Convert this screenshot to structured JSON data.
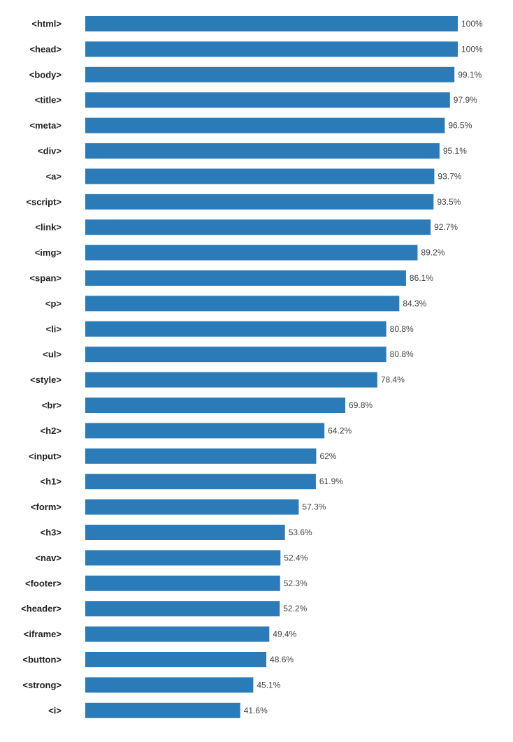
{
  "chart_data": {
    "type": "bar",
    "orientation": "horizontal",
    "title": "",
    "xlabel": "",
    "ylabel": "",
    "xlim": [
      0,
      100
    ],
    "grid": false,
    "legend": "none",
    "bar_color": "#2b7bb9",
    "categories": [
      "<html>",
      "<head>",
      "<body>",
      "<title>",
      "<meta>",
      "<div>",
      "<a>",
      "<script>",
      "<link>",
      "<img>",
      "<span>",
      "<p>",
      "<li>",
      "<ul>",
      "<style>",
      "<br>",
      "<h2>",
      "<input>",
      "<h1>",
      "<form>",
      "<h3>",
      "<nav>",
      "<footer>",
      "<header>",
      "<iframe>",
      "<button>",
      "<strong>",
      "<i>"
    ],
    "values": [
      100,
      100,
      99.1,
      97.9,
      96.5,
      95.1,
      93.7,
      93.5,
      92.7,
      89.2,
      86.1,
      84.3,
      80.8,
      80.8,
      78.4,
      69.8,
      64.2,
      62,
      61.9,
      57.3,
      53.6,
      52.4,
      52.3,
      52.2,
      49.4,
      48.6,
      45.1,
      41.6
    ],
    "value_labels": [
      "100%",
      "100%",
      "99.1%",
      "97.9%",
      "96.5%",
      "95.1%",
      "93.7%",
      "93.5%",
      "92.7%",
      "89.2%",
      "86.1%",
      "84.3%",
      "80.8%",
      "80.8%",
      "78.4%",
      "69.8%",
      "64.2%",
      "62%",
      "61.9%",
      "57.3%",
      "53.6%",
      "52.4%",
      "52.3%",
      "52.2%",
      "49.4%",
      "48.6%",
      "45.1%",
      "41.6%"
    ]
  }
}
